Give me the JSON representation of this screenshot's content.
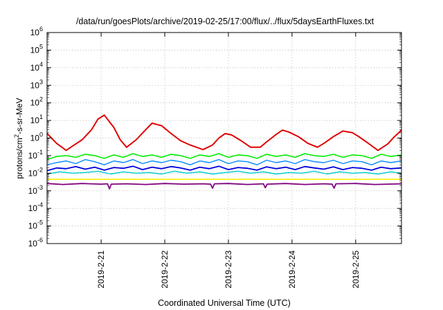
{
  "chart_data": {
    "type": "line",
    "title": "/data/run/goesPlots/archive/2019-02-25/17:00/flux/../flux/5daysEarthFluxes.txt",
    "xlabel": "Coordinated Universal Time (UTC)",
    "ylabel": {
      "pre": "protons/cm",
      "sup": "2",
      "post": "-s-sr-MeV"
    },
    "yscale": "log",
    "ylim_exp": [
      -6,
      6
    ],
    "y_tick_base": "10",
    "y_ticks": [
      {
        "exp": -6,
        "sup": "-6"
      },
      {
        "exp": -5,
        "sup": "-5"
      },
      {
        "exp": -4,
        "sup": "-4"
      },
      {
        "exp": -3,
        "sup": "-3"
      },
      {
        "exp": -2,
        "sup": "-2"
      },
      {
        "exp": -1,
        "sup": "-1"
      },
      {
        "exp": 0,
        "sup": "0"
      },
      {
        "exp": 1,
        "sup": "1"
      },
      {
        "exp": 2,
        "sup": "2"
      },
      {
        "exp": 3,
        "sup": "3"
      },
      {
        "exp": 4,
        "sup": "4"
      },
      {
        "exp": 5,
        "sup": "5"
      },
      {
        "exp": 6,
        "sup": "6"
      }
    ],
    "xlim_days": [
      20.15,
      25.72
    ],
    "x_ticks": [
      {
        "label": "2019-2-21",
        "day": 21
      },
      {
        "label": "2019-2-22",
        "day": 22
      },
      {
        "label": "2019-2-23",
        "day": 23
      },
      {
        "label": "2019-2-24",
        "day": 24
      },
      {
        "label": "2019-2-25",
        "day": 25
      }
    ],
    "grid": true,
    "series": [
      {
        "color": "#e00000",
        "lw": 2,
        "x": [
          20.15,
          20.3,
          20.45,
          20.55,
          20.7,
          20.85,
          20.95,
          21.05,
          21.2,
          21.3,
          21.4,
          21.55,
          21.7,
          21.8,
          21.95,
          22.1,
          22.25,
          22.4,
          22.5,
          22.6,
          22.75,
          22.85,
          22.95,
          23.05,
          23.2,
          23.35,
          23.5,
          23.6,
          23.75,
          23.85,
          23.95,
          24.1,
          24.25,
          24.4,
          24.5,
          24.65,
          24.8,
          24.95,
          25.05,
          25.2,
          25.35,
          25.5,
          25.6,
          25.72
        ],
        "y": [
          1.8,
          0.5,
          0.2,
          0.35,
          0.8,
          3,
          12,
          20,
          4,
          0.8,
          0.3,
          0.8,
          3,
          7,
          5,
          1.8,
          0.7,
          0.4,
          0.3,
          0.22,
          0.4,
          1,
          1.8,
          1.5,
          0.7,
          0.3,
          0.3,
          0.6,
          1.6,
          2.8,
          2.2,
          1.2,
          0.5,
          0.3,
          0.5,
          1.2,
          2.5,
          2,
          1.2,
          0.5,
          0.2,
          0.45,
          1.1,
          2.8
        ]
      },
      {
        "color": "#00ee00",
        "lw": 1.6,
        "x": [
          20.15,
          20.3,
          20.45,
          20.6,
          20.75,
          20.9,
          21.05,
          21.2,
          21.35,
          21.5,
          21.65,
          21.8,
          21.95,
          22.1,
          22.25,
          22.4,
          22.55,
          22.7,
          22.85,
          23.0,
          23.15,
          23.3,
          23.45,
          23.6,
          23.75,
          23.9,
          24.05,
          24.2,
          24.35,
          24.5,
          24.65,
          24.8,
          24.95,
          25.1,
          25.25,
          25.4,
          25.55,
          25.72
        ],
        "y": [
          0.06,
          0.09,
          0.1,
          0.08,
          0.12,
          0.1,
          0.07,
          0.11,
          0.08,
          0.13,
          0.09,
          0.11,
          0.08,
          0.12,
          0.1,
          0.07,
          0.11,
          0.09,
          0.13,
          0.08,
          0.11,
          0.1,
          0.07,
          0.12,
          0.09,
          0.11,
          0.08,
          0.13,
          0.1,
          0.09,
          0.12,
          0.08,
          0.11,
          0.1,
          0.07,
          0.12,
          0.09,
          0.11
        ]
      },
      {
        "color": "#00cccc",
        "lw": 1.4,
        "x": [
          20.15,
          20.35,
          20.55,
          20.75,
          20.95,
          21.15,
          21.35,
          21.55,
          21.75,
          21.95,
          22.15,
          22.35,
          22.55,
          22.75,
          22.95,
          23.15,
          23.35,
          23.55,
          23.75,
          23.95,
          24.15,
          24.35,
          24.55,
          24.75,
          24.95,
          25.15,
          25.35,
          25.55,
          25.72
        ],
        "y": [
          0.009,
          0.012,
          0.01,
          0.011,
          0.013,
          0.009,
          0.012,
          0.01,
          0.011,
          0.009,
          0.013,
          0.01,
          0.012,
          0.009,
          0.011,
          0.013,
          0.01,
          0.012,
          0.009,
          0.011,
          0.01,
          0.013,
          0.009,
          0.012,
          0.01,
          0.011,
          0.009,
          0.012,
          0.01
        ]
      },
      {
        "color": "#0088ff",
        "lw": 1.4,
        "x": [
          20.15,
          20.3,
          20.45,
          20.6,
          20.75,
          20.9,
          21.05,
          21.2,
          21.35,
          21.5,
          21.65,
          21.8,
          21.95,
          22.1,
          22.25,
          22.4,
          22.55,
          22.7,
          22.85,
          23.0,
          23.15,
          23.3,
          23.45,
          23.6,
          23.75,
          23.9,
          24.05,
          24.2,
          24.35,
          24.5,
          24.65,
          24.8,
          24.95,
          25.1,
          25.25,
          25.4,
          25.55,
          25.72
        ],
        "y": [
          0.03,
          0.04,
          0.05,
          0.035,
          0.06,
          0.045,
          0.03,
          0.05,
          0.04,
          0.06,
          0.035,
          0.05,
          0.04,
          0.055,
          0.045,
          0.03,
          0.05,
          0.04,
          0.06,
          0.035,
          0.05,
          0.045,
          0.03,
          0.055,
          0.04,
          0.05,
          0.035,
          0.06,
          0.045,
          0.04,
          0.055,
          0.035,
          0.05,
          0.045,
          0.03,
          0.05,
          0.04,
          0.05
        ]
      },
      {
        "color": "#0000dd",
        "lw": 1.8,
        "x": [
          20.15,
          20.3,
          20.45,
          20.6,
          20.75,
          20.9,
          21.05,
          21.2,
          21.35,
          21.5,
          21.65,
          21.8,
          21.95,
          22.1,
          22.25,
          22.4,
          22.55,
          22.7,
          22.85,
          23.0,
          23.15,
          23.3,
          23.45,
          23.6,
          23.75,
          23.9,
          24.05,
          24.2,
          24.35,
          24.5,
          24.65,
          24.8,
          24.95,
          25.1,
          25.25,
          25.4,
          25.55,
          25.72
        ],
        "y": [
          0.014,
          0.02,
          0.018,
          0.024,
          0.017,
          0.022,
          0.015,
          0.021,
          0.019,
          0.025,
          0.016,
          0.022,
          0.018,
          0.024,
          0.02,
          0.015,
          0.022,
          0.018,
          0.025,
          0.016,
          0.021,
          0.019,
          0.015,
          0.023,
          0.018,
          0.022,
          0.016,
          0.024,
          0.02,
          0.017,
          0.023,
          0.016,
          0.021,
          0.019,
          0.015,
          0.022,
          0.018,
          0.02
        ]
      },
      {
        "color": "#ffee00",
        "lw": 1.6,
        "x": [
          20.15,
          25.72
        ],
        "y": [
          0.0045,
          0.0045
        ]
      },
      {
        "color": "#800080",
        "lw": 1.8,
        "x": [
          20.15,
          20.4,
          20.7,
          21.0,
          21.1,
          21.13,
          21.16,
          21.4,
          21.7,
          22.0,
          22.3,
          22.6,
          22.72,
          22.75,
          22.78,
          23.0,
          23.3,
          23.55,
          23.58,
          23.61,
          23.9,
          24.2,
          24.5,
          24.63,
          24.66,
          24.69,
          25.0,
          25.3,
          25.72
        ],
        "y": [
          0.0026,
          0.0023,
          0.0026,
          0.0024,
          0.0025,
          0.0013,
          0.0024,
          0.0025,
          0.0023,
          0.0026,
          0.0024,
          0.0025,
          0.0024,
          0.0014,
          0.0025,
          0.0026,
          0.0023,
          0.0025,
          0.0015,
          0.0024,
          0.0026,
          0.0023,
          0.0025,
          0.0024,
          0.0014,
          0.0025,
          0.0026,
          0.0023,
          0.0025
        ]
      }
    ]
  }
}
